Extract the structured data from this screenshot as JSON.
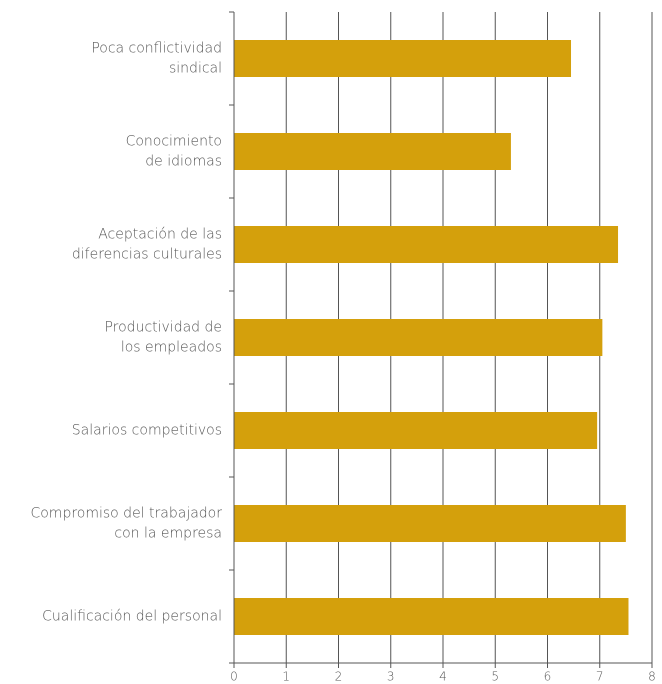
{
  "chart_data": {
    "type": "barh",
    "categories": [
      [
        "Poca conflictividad",
        "sindical"
      ],
      [
        "Conocimiento",
        "de idiomas"
      ],
      [
        "Aceptación de las",
        "diferencias culturales"
      ],
      [
        "Productividad de",
        "los empleados"
      ],
      [
        "Salarios competitivos"
      ],
      [
        "Compromiso del trabajador",
        "con la empresa"
      ],
      [
        "Cualificación del personal"
      ]
    ],
    "values": [
      6.45,
      5.3,
      7.35,
      7.05,
      6.95,
      7.5,
      7.55
    ],
    "color": "#d4a00c",
    "xlim": [
      0,
      8
    ],
    "xticks": [
      0,
      1,
      2,
      3,
      4,
      5,
      6,
      7,
      8
    ],
    "grid": true
  }
}
